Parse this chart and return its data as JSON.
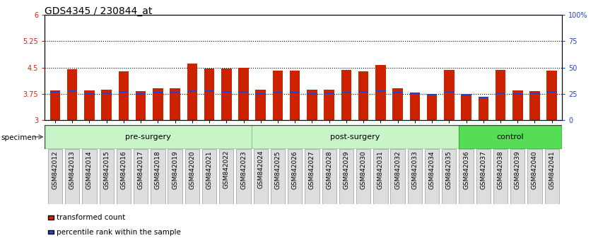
{
  "title": "GDS4345 / 230844_at",
  "samples": [
    "GSM842012",
    "GSM842013",
    "GSM842014",
    "GSM842015",
    "GSM842016",
    "GSM842017",
    "GSM842018",
    "GSM842019",
    "GSM842020",
    "GSM842021",
    "GSM842022",
    "GSM842023",
    "GSM842024",
    "GSM842025",
    "GSM842026",
    "GSM842027",
    "GSM842028",
    "GSM842029",
    "GSM842030",
    "GSM842031",
    "GSM842032",
    "GSM842033",
    "GSM842034",
    "GSM842035",
    "GSM842036",
    "GSM842037",
    "GSM842038",
    "GSM842039",
    "GSM842040",
    "GSM842041"
  ],
  "bar_values": [
    3.85,
    4.45,
    3.85,
    3.87,
    4.4,
    3.83,
    3.9,
    3.9,
    4.62,
    4.48,
    4.48,
    4.49,
    3.87,
    4.42,
    4.42,
    3.86,
    3.86,
    4.43,
    4.39,
    4.57,
    3.9,
    3.79,
    3.74,
    4.43,
    3.74,
    3.63,
    4.43,
    3.84,
    3.83,
    4.42
  ],
  "percentile_values": [
    3.8,
    3.82,
    3.75,
    3.77,
    3.8,
    3.75,
    3.78,
    3.78,
    3.82,
    3.82,
    3.8,
    3.8,
    3.75,
    3.79,
    3.79,
    3.75,
    3.76,
    3.78,
    3.8,
    3.82,
    3.79,
    3.76,
    3.72,
    3.8,
    3.71,
    3.65,
    3.76,
    3.75,
    3.76,
    3.8
  ],
  "groups": [
    {
      "label": "pre-surgery",
      "start": 0,
      "end": 12,
      "facecolor": "#c8f5c8",
      "edgecolor": "#88cc88"
    },
    {
      "label": "post-surgery",
      "start": 12,
      "end": 24,
      "facecolor": "#c8f5c8",
      "edgecolor": "#88cc88"
    },
    {
      "label": "control",
      "start": 24,
      "end": 30,
      "facecolor": "#55dd55",
      "edgecolor": "#33aa33"
    }
  ],
  "ymin": 3.0,
  "ymax": 6.0,
  "yticks": [
    3.0,
    3.75,
    4.5,
    5.25,
    6.0
  ],
  "ytick_labels": [
    "3",
    "3.75",
    "4.5",
    "5.25",
    "6"
  ],
  "right_yticks": [
    0,
    25,
    50,
    75,
    100
  ],
  "right_ytick_labels": [
    "0",
    "25",
    "50",
    "75",
    "100%"
  ],
  "hlines": [
    3.75,
    4.5,
    5.25
  ],
  "bar_color": "#cc2200",
  "percentile_color": "#2244cc",
  "bar_width": 0.6,
  "left_tick_color": "#cc2200",
  "right_tick_color": "#2244cc",
  "xtick_bg_color": "#dddddd",
  "legend_items": [
    {
      "label": "transformed count",
      "color": "#cc2200"
    },
    {
      "label": "percentile rank within the sample",
      "color": "#2244cc"
    }
  ],
  "specimen_label": "specimen",
  "title_fontsize": 10,
  "tick_fontsize": 7,
  "xtick_fontsize": 6.5
}
